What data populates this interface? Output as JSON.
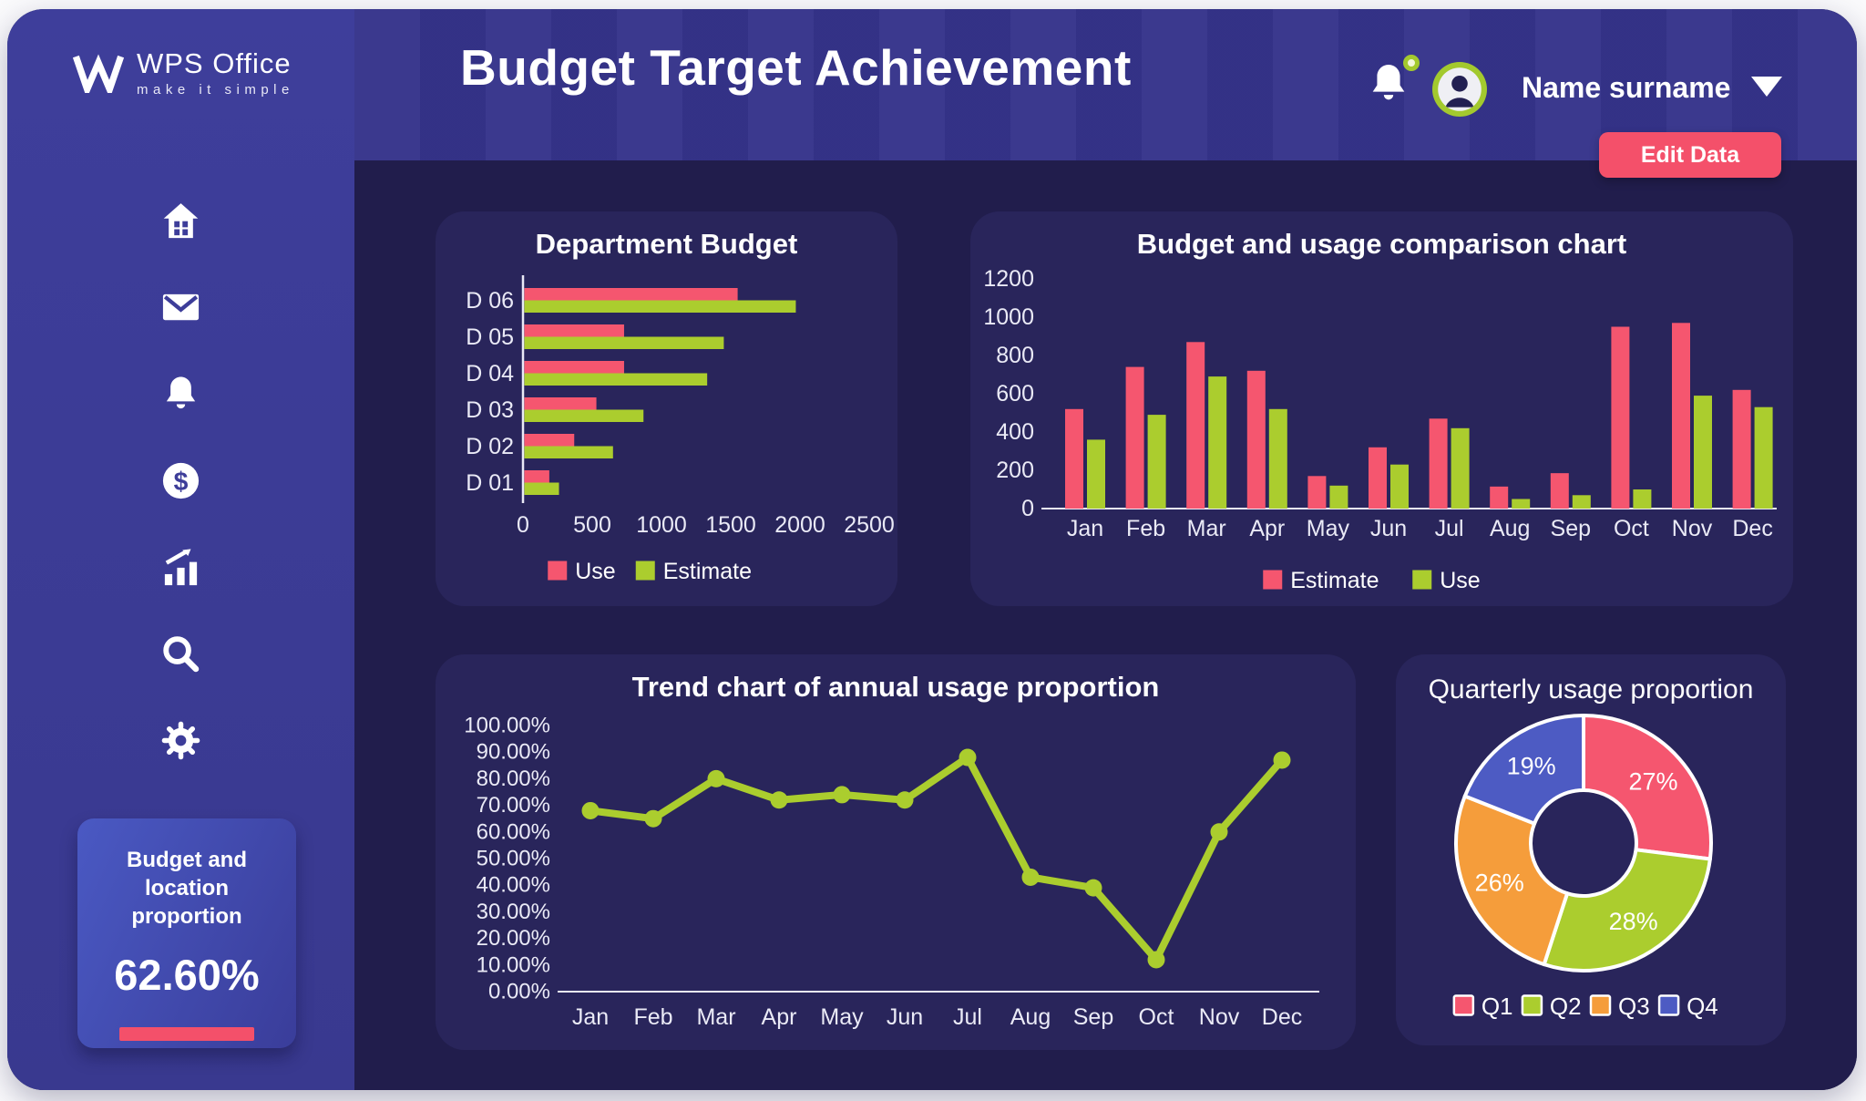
{
  "header": {
    "title": "Budget Target Achievement",
    "user_name": "Name surname",
    "edit_button": "Edit Data"
  },
  "sidebar": {
    "logo": {
      "brand": "WPS Office",
      "tagline": "make it simple"
    },
    "dollar_glyph": "$",
    "icons": [
      "home",
      "mail",
      "notifications",
      "finance",
      "stats",
      "search",
      "settings"
    ],
    "summary_card": {
      "label": "Budget and location proportion",
      "value": "62.60%"
    }
  },
  "colors": {
    "accent_red": "#F4506A",
    "series_red": "#F5566F",
    "series_green": "#ABCD2E",
    "series_orange": "#F59D3B",
    "series_blue": "#4D5BC3",
    "sidebar": "#3D3D99",
    "header": "#35338A",
    "background": "#211D4C",
    "card": "#29255B"
  },
  "chart_data": [
    {
      "id": "department-budget",
      "type": "bar",
      "orientation": "horizontal",
      "title": "Department Budget",
      "categories": [
        "D 06",
        "D 05",
        "D 04",
        "D 03",
        "D 02",
        "D 01"
      ],
      "series": [
        {
          "name": "Use",
          "color": "#F5566F",
          "values": [
            1550,
            730,
            730,
            530,
            370,
            190
          ]
        },
        {
          "name": "Estimate",
          "color": "#ABCD2E",
          "values": [
            1970,
            1450,
            1330,
            870,
            650,
            260
          ]
        }
      ],
      "xlim": [
        0,
        2500
      ],
      "xticks": [
        0,
        500,
        1000,
        1500,
        2000,
        2500
      ],
      "legend_position": "bottom",
      "grid": false
    },
    {
      "id": "budget-usage-comparison",
      "type": "bar",
      "orientation": "vertical",
      "title": "Budget and usage comparison chart",
      "categories": [
        "Jan",
        "Feb",
        "Mar",
        "Apr",
        "May",
        "Jun",
        "Jul",
        "Aug",
        "Sep",
        "Oct",
        "Nov",
        "Dec"
      ],
      "series": [
        {
          "name": "Estimate",
          "color": "#F5566F",
          "values": [
            520,
            740,
            870,
            720,
            170,
            320,
            470,
            115,
            185,
            950,
            970,
            620
          ]
        },
        {
          "name": "Use",
          "color": "#ABCD2E",
          "values": [
            360,
            490,
            690,
            520,
            120,
            230,
            420,
            50,
            70,
            100,
            590,
            530
          ]
        }
      ],
      "ylim": [
        0,
        1200
      ],
      "yticks": [
        0,
        200,
        400,
        600,
        800,
        1000,
        1200
      ],
      "legend_position": "bottom",
      "grid": false
    },
    {
      "id": "trend-annual-usage",
      "type": "line",
      "title": "Trend chart of annual usage proportion",
      "categories": [
        "Jan",
        "Feb",
        "Mar",
        "Apr",
        "May",
        "Jun",
        "Jul",
        "Aug",
        "Sep",
        "Oct",
        "Nov",
        "Dec"
      ],
      "series": [
        {
          "name": "Usage proportion",
          "color": "#ABCD2E",
          "values": [
            68,
            65,
            80,
            72,
            74,
            72,
            88,
            43,
            39,
            12,
            60,
            87
          ]
        }
      ],
      "ylim": [
        0,
        100
      ],
      "ytick_step": 10,
      "ytick_format": "percent_2dp",
      "grid": false
    },
    {
      "id": "quarterly-usage",
      "type": "donut",
      "title": "Quarterly usage proportion",
      "labels": [
        "Q1",
        "Q2",
        "Q3",
        "Q4"
      ],
      "values": [
        27,
        28,
        26,
        19
      ],
      "colors": [
        "#F5566F",
        "#ABCD2E",
        "#F59D3B",
        "#4D5BC3"
      ],
      "label_format": "percent",
      "legend_position": "bottom"
    }
  ]
}
